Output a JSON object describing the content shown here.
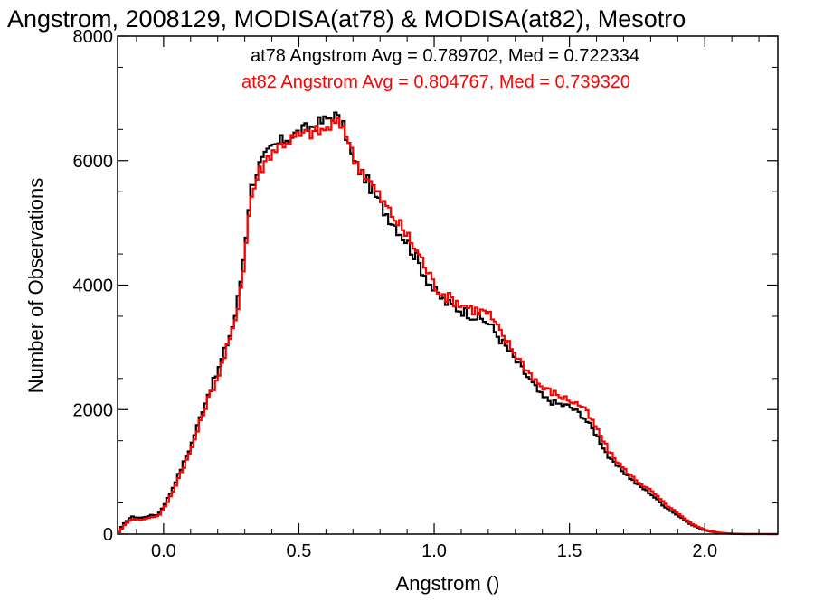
{
  "chart_data": {
    "type": "line",
    "title": "Angstrom, 2008129, MODISA(at78) & MODISA(at82), Mesotro",
    "xlabel": "Angstrom ()",
    "ylabel": "Number of Observations",
    "xlim": [
      -0.17,
      2.27
    ],
    "ylim": [
      0,
      8000
    ],
    "xticks": [
      "0.0",
      "0.5",
      "1.0",
      "1.5",
      "2.0"
    ],
    "xtick_values": [
      0.0,
      0.5,
      1.0,
      1.5,
      2.0
    ],
    "yticks": [
      "0",
      "2000",
      "4000",
      "6000",
      "8000"
    ],
    "ytick_values": [
      0,
      2000,
      4000,
      6000,
      8000
    ],
    "grid": false,
    "legend_position": "top-right",
    "legend": [
      "at78 Angstrom Avg = 0.789702, Med = 0.722334",
      "at82 Angstrom Avg = 0.804767, Med = 0.739320"
    ],
    "series": [
      {
        "color": "#000000",
        "points": [
          [
            -0.17,
            0
          ],
          [
            -0.15,
            150
          ],
          [
            -0.12,
            280
          ],
          [
            -0.08,
            260
          ],
          [
            -0.05,
            300
          ],
          [
            -0.02,
            310
          ],
          [
            0.0,
            450
          ],
          [
            0.03,
            700
          ],
          [
            0.06,
            1000
          ],
          [
            0.1,
            1400
          ],
          [
            0.13,
            1800
          ],
          [
            0.16,
            2200
          ],
          [
            0.2,
            2600
          ],
          [
            0.23,
            3000
          ],
          [
            0.26,
            3400
          ],
          [
            0.28,
            3900
          ],
          [
            0.3,
            4600
          ],
          [
            0.32,
            5500
          ],
          [
            0.35,
            5900
          ],
          [
            0.4,
            6200
          ],
          [
            0.45,
            6350
          ],
          [
            0.5,
            6450
          ],
          [
            0.55,
            6550
          ],
          [
            0.6,
            6650
          ],
          [
            0.63,
            6750
          ],
          [
            0.67,
            6500
          ],
          [
            0.7,
            6000
          ],
          [
            0.75,
            5700
          ],
          [
            0.8,
            5300
          ],
          [
            0.85,
            5000
          ],
          [
            0.9,
            4700
          ],
          [
            0.95,
            4300
          ],
          [
            1.0,
            3900
          ],
          [
            1.05,
            3700
          ],
          [
            1.1,
            3600
          ],
          [
            1.15,
            3500
          ],
          [
            1.2,
            3400
          ],
          [
            1.25,
            3100
          ],
          [
            1.3,
            2800
          ],
          [
            1.35,
            2500
          ],
          [
            1.4,
            2200
          ],
          [
            1.45,
            2100
          ],
          [
            1.5,
            2050
          ],
          [
            1.55,
            1900
          ],
          [
            1.6,
            1600
          ],
          [
            1.65,
            1200
          ],
          [
            1.7,
            1000
          ],
          [
            1.75,
            800
          ],
          [
            1.8,
            650
          ],
          [
            1.85,
            450
          ],
          [
            1.9,
            300
          ],
          [
            1.95,
            150
          ],
          [
            2.0,
            60
          ],
          [
            2.05,
            20
          ],
          [
            2.1,
            5
          ],
          [
            2.15,
            0
          ],
          [
            2.27,
            0
          ]
        ]
      },
      {
        "color": "#ff0000",
        "points": [
          [
            -0.17,
            0
          ],
          [
            -0.15,
            120
          ],
          [
            -0.12,
            240
          ],
          [
            -0.08,
            230
          ],
          [
            -0.05,
            270
          ],
          [
            -0.02,
            290
          ],
          [
            0.0,
            400
          ],
          [
            0.03,
            640
          ],
          [
            0.06,
            950
          ],
          [
            0.1,
            1330
          ],
          [
            0.13,
            1720
          ],
          [
            0.16,
            2120
          ],
          [
            0.2,
            2520
          ],
          [
            0.23,
            2920
          ],
          [
            0.26,
            3320
          ],
          [
            0.28,
            3820
          ],
          [
            0.3,
            4450
          ],
          [
            0.32,
            5350
          ],
          [
            0.35,
            5800
          ],
          [
            0.4,
            6150
          ],
          [
            0.45,
            6300
          ],
          [
            0.5,
            6400
          ],
          [
            0.55,
            6450
          ],
          [
            0.6,
            6500
          ],
          [
            0.63,
            6600
          ],
          [
            0.67,
            6550
          ],
          [
            0.7,
            6050
          ],
          [
            0.75,
            5750
          ],
          [
            0.8,
            5400
          ],
          [
            0.85,
            5100
          ],
          [
            0.9,
            4800
          ],
          [
            0.95,
            4450
          ],
          [
            1.0,
            4000
          ],
          [
            1.05,
            3800
          ],
          [
            1.1,
            3700
          ],
          [
            1.15,
            3600
          ],
          [
            1.2,
            3550
          ],
          [
            1.25,
            3200
          ],
          [
            1.3,
            2900
          ],
          [
            1.35,
            2600
          ],
          [
            1.4,
            2350
          ],
          [
            1.45,
            2250
          ],
          [
            1.5,
            2150
          ],
          [
            1.55,
            2050
          ],
          [
            1.6,
            1700
          ],
          [
            1.65,
            1300
          ],
          [
            1.7,
            1050
          ],
          [
            1.75,
            850
          ],
          [
            1.8,
            700
          ],
          [
            1.85,
            500
          ],
          [
            1.9,
            330
          ],
          [
            1.95,
            170
          ],
          [
            2.0,
            70
          ],
          [
            2.05,
            25
          ],
          [
            2.1,
            8
          ],
          [
            2.15,
            2
          ],
          [
            2.27,
            0
          ]
        ]
      }
    ]
  }
}
